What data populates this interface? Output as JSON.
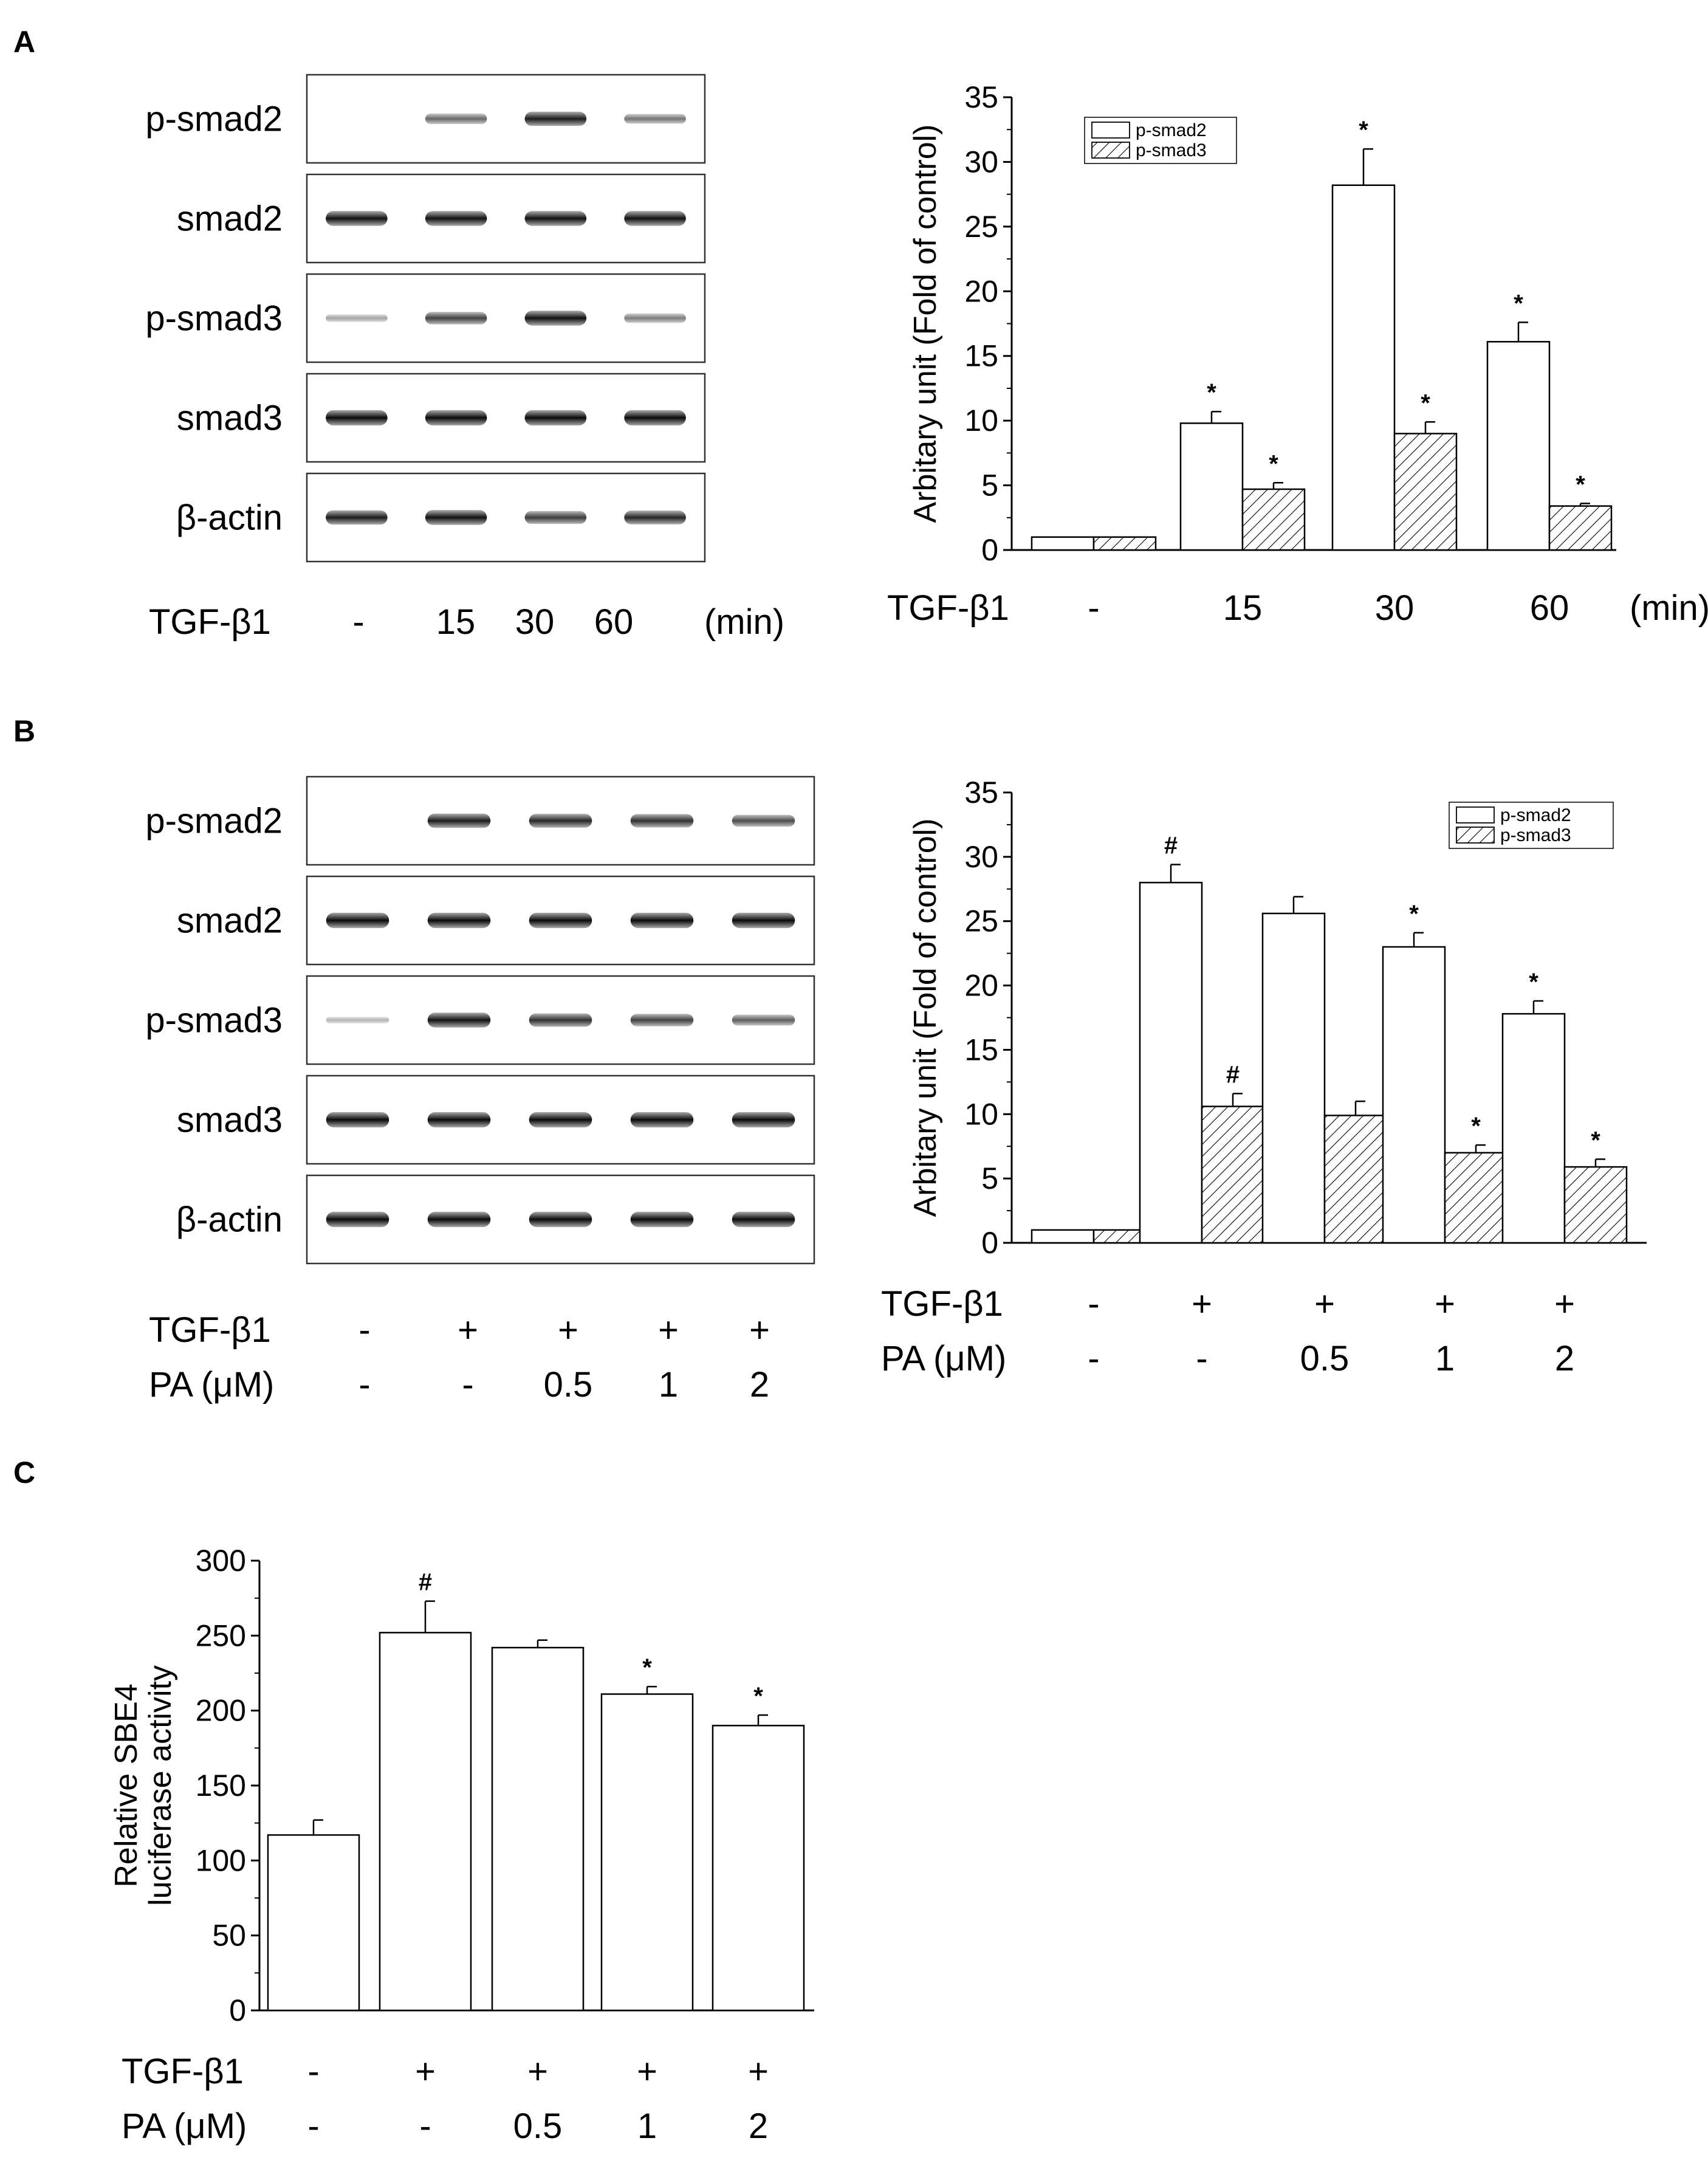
{
  "panels": {
    "A": {
      "letter": "A",
      "blot": {
        "rows": [
          {
            "label": "p-smad2",
            "intensities": [
              0.0,
              0.45,
              0.85,
              0.38
            ]
          },
          {
            "label": "smad2",
            "intensities": [
              0.9,
              0.9,
              0.9,
              0.9
            ]
          },
          {
            "label": "p-smad3",
            "intensities": [
              0.15,
              0.65,
              0.9,
              0.35
            ]
          },
          {
            "label": "smad3",
            "intensities": [
              0.95,
              0.95,
              0.95,
              0.95
            ]
          },
          {
            "label": "β-actin",
            "intensities": [
              0.85,
              0.9,
              0.7,
              0.8
            ]
          }
        ],
        "conditions": [
          {
            "name": "TGF-β1",
            "values": [
              "-",
              "15",
              "30",
              "60"
            ],
            "unit": "(min)"
          }
        ]
      }
    },
    "B": {
      "letter": "B",
      "blot": {
        "rows": [
          {
            "label": "p-smad2",
            "intensities": [
              0.0,
              0.85,
              0.8,
              0.75,
              0.6
            ]
          },
          {
            "label": "smad2",
            "intensities": [
              0.95,
              0.95,
              0.95,
              0.95,
              0.95
            ]
          },
          {
            "label": "p-smad3",
            "intensities": [
              0.05,
              0.9,
              0.75,
              0.65,
              0.5
            ]
          },
          {
            "label": "smad3",
            "intensities": [
              0.95,
              0.95,
              0.95,
              0.95,
              0.95
            ]
          },
          {
            "label": "β-actin",
            "intensities": [
              0.95,
              0.95,
              0.95,
              0.95,
              0.95
            ]
          }
        ],
        "conditions": [
          {
            "name": "TGF-β1",
            "values": [
              "-",
              "+",
              "+",
              "+",
              "+"
            ],
            "unit": ""
          },
          {
            "name": "PA (μM)",
            "values": [
              "-",
              "-",
              "0.5",
              "1",
              "2"
            ],
            "unit": ""
          }
        ]
      }
    },
    "C": {
      "letter": "C"
    }
  },
  "chart_data": [
    {
      "id": "A",
      "type": "bar",
      "ylabel": "Arbitary unit (Fold of control)",
      "ylim": [
        0,
        35
      ],
      "yticks": [
        0,
        5,
        10,
        15,
        20,
        25,
        30,
        35
      ],
      "legend_position": "top-left",
      "series": [
        {
          "name": "p-smad2",
          "pattern": "open",
          "values": [
            1.0,
            9.8,
            28.2,
            16.1
          ],
          "errors": [
            0,
            0.9,
            2.8,
            1.5
          ],
          "marks": [
            "",
            "*",
            "*",
            "*"
          ]
        },
        {
          "name": "p-smad3",
          "pattern": "hatched",
          "values": [
            1.0,
            4.7,
            9.0,
            3.4
          ],
          "errors": [
            0,
            0.5,
            0.9,
            0.2
          ],
          "marks": [
            "",
            "*",
            "*",
            "*"
          ]
        }
      ],
      "conditions": [
        {
          "name": "TGF-β1",
          "values": [
            "-",
            "15",
            "30",
            "60"
          ],
          "unit": "(min)"
        }
      ]
    },
    {
      "id": "B",
      "type": "bar",
      "ylabel": "Arbitary unit (Fold of control)",
      "ylim": [
        0,
        35
      ],
      "yticks": [
        0,
        5,
        10,
        15,
        20,
        25,
        30,
        35
      ],
      "legend_position": "top-right",
      "series": [
        {
          "name": "p-smad2",
          "pattern": "open",
          "values": [
            1.0,
            28.0,
            25.6,
            23.0,
            17.8
          ],
          "errors": [
            0,
            1.4,
            1.3,
            1.1,
            1.0
          ],
          "marks": [
            "",
            "#",
            "",
            "*",
            "*"
          ]
        },
        {
          "name": "p-smad3",
          "pattern": "hatched",
          "values": [
            1.0,
            10.6,
            9.9,
            7.0,
            5.9
          ],
          "errors": [
            0,
            1.0,
            1.1,
            0.6,
            0.6
          ],
          "marks": [
            "",
            "#",
            "",
            "*",
            "*"
          ]
        }
      ],
      "conditions": [
        {
          "name": "TGF-β1",
          "values": [
            "-",
            "+",
            "+",
            "+",
            "+"
          ],
          "unit": ""
        },
        {
          "name": "PA (μM)",
          "values": [
            "-",
            "-",
            "0.5",
            "1",
            "2"
          ],
          "unit": ""
        }
      ]
    },
    {
      "id": "C",
      "type": "bar",
      "ylabel_lines": [
        "Relative SBE4",
        "luciferase activity"
      ],
      "ylim": [
        0,
        300
      ],
      "yticks": [
        0,
        50,
        100,
        150,
        200,
        250,
        300
      ],
      "series": [
        {
          "name": "SBE4 luciferase",
          "pattern": "open",
          "values": [
            117,
            252,
            242,
            211,
            190
          ],
          "errors": [
            10,
            21,
            5,
            5,
            7
          ],
          "marks": [
            "",
            "#",
            "",
            "*",
            "*"
          ]
        }
      ],
      "conditions": [
        {
          "name": "TGF-β1",
          "values": [
            "-",
            "+",
            "+",
            "+",
            "+"
          ],
          "unit": ""
        },
        {
          "name": "PA (μM)",
          "values": [
            "-",
            "-",
            "0.5",
            "1",
            "2"
          ],
          "unit": ""
        }
      ]
    }
  ]
}
